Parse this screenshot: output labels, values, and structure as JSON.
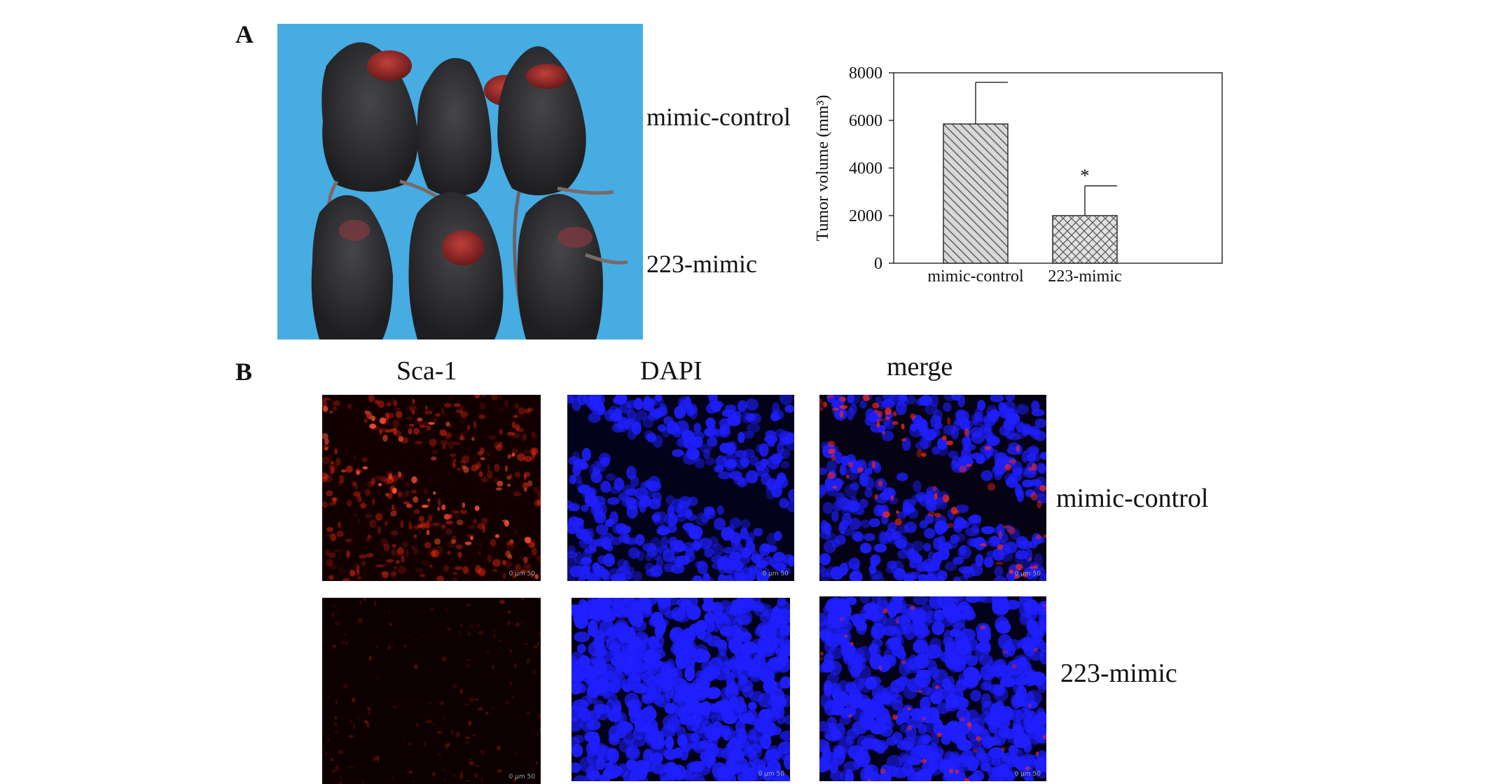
{
  "panel_a": {
    "letter": "A",
    "row_labels": [
      "mimic-control",
      "223-mimic"
    ]
  },
  "panel_b": {
    "letter": "B",
    "column_headers": [
      "Sca-1",
      "DAPI",
      "merge"
    ],
    "row_labels": [
      "mimic-control",
      "223-mimic"
    ],
    "scale_label": "0    µm    50"
  },
  "colors": {
    "photo_background": "#4bb0e6",
    "mouse_fur": "#2c2c2e",
    "tumor": "#8e2424",
    "sca1_signal": "#ff2a10",
    "dapi_signal": "#1f1fff"
  },
  "chart_data": {
    "type": "bar",
    "ylabel": "Tumor volume (mm³)",
    "categories": [
      "mimic-control",
      "223-mimic"
    ],
    "values": [
      5850,
      2000
    ],
    "errors": [
      1750,
      1250
    ],
    "ylim": [
      0,
      8000
    ],
    "yticks": [
      "0",
      "2000",
      "4000",
      "6000",
      "8000"
    ],
    "annotations": [
      "*"
    ],
    "hatch": [
      "diagonal",
      "crosshatch"
    ]
  }
}
